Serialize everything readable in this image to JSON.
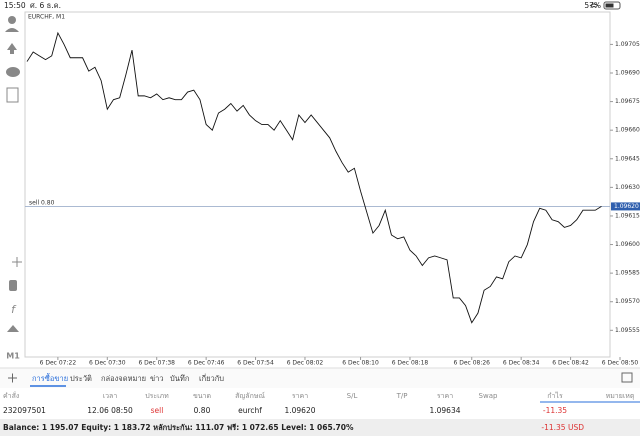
{
  "status_bar": {
    "time": "15:50",
    "date": "ศ. 6 ธ.ค.",
    "battery": "57%"
  },
  "sidebar": {
    "timeframe": "M1"
  },
  "chart_data": {
    "type": "line",
    "title": "EURCHF, M1",
    "color": "#111111",
    "values": [
      1.09696,
      1.09701,
      1.09699,
      1.09697,
      1.09699,
      1.09711,
      1.09705,
      1.09698,
      1.09698,
      1.09698,
      1.09691,
      1.09693,
      1.09686,
      1.09671,
      1.09676,
      1.09677,
      1.09689,
      1.09702,
      1.09678,
      1.09678,
      1.09677,
      1.09679,
      1.09676,
      1.09677,
      1.09676,
      1.09676,
      1.0968,
      1.09681,
      1.09676,
      1.09663,
      1.0966,
      1.09669,
      1.09671,
      1.09674,
      1.0967,
      1.09673,
      1.09668,
      1.09665,
      1.09663,
      1.09663,
      1.0966,
      1.09665,
      1.0966,
      1.09655,
      1.09668,
      1.09664,
      1.09668,
      1.09664,
      1.0966,
      1.09656,
      1.09649,
      1.09643,
      1.09638,
      1.0964,
      1.09628,
      1.09617,
      1.09606,
      1.0961,
      1.09618,
      1.09605,
      1.09603,
      1.09604,
      1.09597,
      1.09594,
      1.09589,
      1.09593,
      1.09594,
      1.09593,
      1.09592,
      1.09572,
      1.09572,
      1.09568,
      1.09559,
      1.09564,
      1.09576,
      1.09578,
      1.09583,
      1.09582,
      1.09591,
      1.09594,
      1.09593,
      1.096,
      1.09612,
      1.09619,
      1.09618,
      1.09613,
      1.09612,
      1.09609,
      1.0961,
      1.09613,
      1.09618,
      1.09618,
      1.09618,
      1.0962
    ],
    "xlim": [
      0,
      96
    ],
    "xticks": [
      {
        "value": 5,
        "label": "6 Dec 07:22"
      },
      {
        "value": 13,
        "label": "6 Dec 07:30"
      },
      {
        "value": 21,
        "label": "6 Dec 07:38"
      },
      {
        "value": 29,
        "label": "6 Dec 07:46"
      },
      {
        "value": 37,
        "label": "6 Dec 07:54"
      },
      {
        "value": 45,
        "label": "6 Dec 08:02"
      },
      {
        "value": 54,
        "label": "6 Dec 08:10"
      },
      {
        "value": 62,
        "label": "6 Dec 08:18"
      },
      {
        "value": 72,
        "label": "6 Dec 08:26"
      },
      {
        "value": 80,
        "label": "6 Dec 08:34"
      },
      {
        "value": 88,
        "label": "6 Dec 08:42"
      },
      {
        "value": 96,
        "label": "6 Dec 08:50"
      }
    ],
    "ylim": [
      1.09541,
      1.09722
    ],
    "yticks": [
      1.09705,
      {
        "value": 1.0969,
        "label": "1.09690"
      },
      1.09675,
      {
        "value": 1.0966,
        "label": "1.09660"
      },
      1.09645,
      {
        "value": 1.0963,
        "label": "1.09630"
      },
      1.09615,
      {
        "value": 1.096,
        "label": "1.09600"
      },
      1.09585,
      {
        "value": 1.0957,
        "label": "1.09570"
      },
      1.09555
    ],
    "order_line": {
      "label": "sell 0.80",
      "value": 1.0962
    },
    "current_price": {
      "value": 1.0962,
      "label": "1.09620"
    }
  },
  "tabs": [
    "การซื้อขาย",
    "ประวัติ",
    "กล่องจดหมาย",
    "ข่าว",
    "บันทึก",
    "เกี่ยวกับ"
  ],
  "table": {
    "columns": [
      "คำสั่ง",
      "เวลา",
      "ประเภท",
      "ขนาด",
      "สัญลักษณ์",
      "ราคา",
      "S/L",
      "T/P",
      "ราคา",
      "Swap",
      "กำไร",
      "หมายเหตุ"
    ],
    "rows": [
      [
        "232097501",
        "12.06 08:50",
        "sell",
        "0.80",
        "eurchf",
        "1.09620",
        null,
        null,
        "1.09634",
        null,
        "-11.35",
        null
      ]
    ]
  },
  "footer": {
    "summary": "Balance: 1 195.07 Equity: 1 183.72 หลักประกัน: 111.07 ฟรี: 1 072.65 Level: 1 065.70%",
    "profit": "-11.35 USD"
  }
}
